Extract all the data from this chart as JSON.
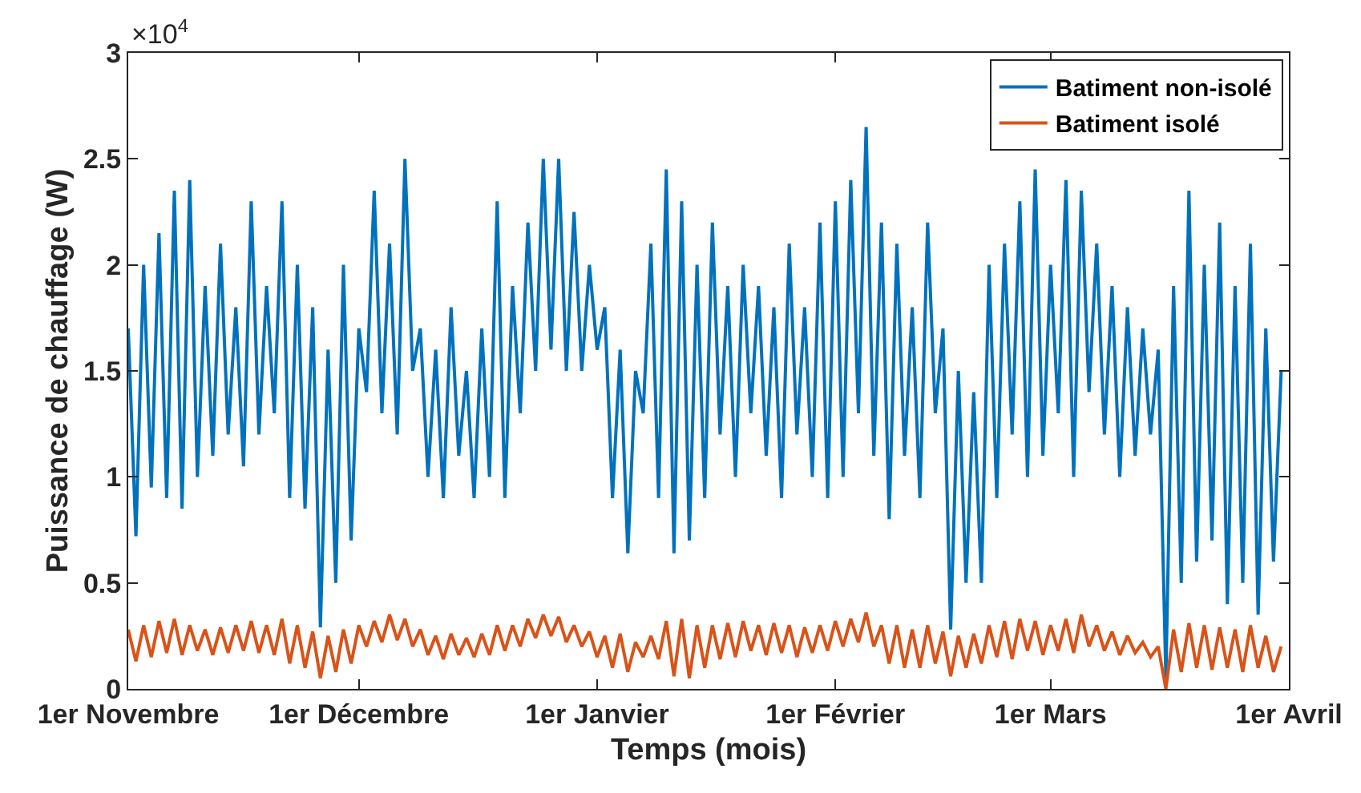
{
  "chart_data": {
    "type": "line",
    "xlabel": "Temps (mois)",
    "ylabel": "Puissance de chauffage (W)",
    "annotations": [
      "×10$^{4}$"
    ],
    "categories": [
      "1er Novembre",
      null,
      null,
      null,
      null,
      null,
      null,
      null,
      null,
      null,
      null,
      null,
      null,
      null,
      null,
      null,
      null,
      null,
      null,
      null,
      null,
      null,
      null,
      null,
      null,
      null,
      null,
      null,
      null,
      null,
      "1er Décembre",
      null,
      null,
      null,
      null,
      null,
      null,
      null,
      null,
      null,
      null,
      null,
      null,
      null,
      null,
      null,
      null,
      null,
      null,
      null,
      null,
      null,
      null,
      null,
      null,
      null,
      null,
      null,
      null,
      null,
      null,
      "1er Janvier",
      null,
      null,
      null,
      null,
      null,
      null,
      null,
      null,
      null,
      null,
      null,
      null,
      null,
      null,
      null,
      null,
      null,
      null,
      null,
      null,
      null,
      null,
      null,
      null,
      null,
      null,
      null,
      null,
      null,
      null,
      "1er Février",
      null,
      null,
      null,
      null,
      null,
      null,
      null,
      null,
      null,
      null,
      null,
      null,
      null,
      null,
      null,
      null,
      null,
      null,
      null,
      null,
      null,
      null,
      null,
      null,
      null,
      null,
      null,
      "1er Mars",
      null,
      null,
      null,
      null,
      null,
      null,
      null,
      null,
      null,
      null,
      null,
      null,
      null,
      null,
      null,
      null,
      null,
      null,
      null,
      null,
      null,
      null,
      null,
      null,
      null,
      null,
      null,
      null,
      null,
      null,
      "1er Avril"
    ],
    "series": [
      {
        "name": "Batiment non-isolé",
        "color": "#0072bd",
        "values": [
          1.7,
          0.72,
          2.0,
          0.95,
          2.15,
          0.9,
          2.35,
          0.85,
          2.4,
          1.0,
          1.9,
          1.1,
          2.1,
          1.2,
          1.8,
          1.05,
          2.3,
          1.2,
          1.9,
          1.3,
          2.3,
          0.9,
          2.0,
          0.85,
          1.8,
          0.29,
          1.6,
          0.5,
          2.0,
          0.7,
          1.7,
          1.4,
          2.35,
          1.3,
          2.1,
          1.2,
          2.5,
          1.5,
          1.7,
          1.0,
          1.6,
          0.9,
          1.8,
          1.1,
          1.5,
          0.9,
          1.7,
          1.0,
          2.3,
          0.9,
          1.9,
          1.3,
          2.2,
          1.5,
          2.5,
          1.6,
          2.5,
          1.5,
          2.25,
          1.5,
          2.0,
          1.6,
          1.8,
          0.9,
          1.6,
          0.64,
          1.5,
          1.3,
          2.1,
          0.9,
          2.45,
          0.64,
          2.3,
          0.7,
          2.0,
          0.9,
          2.2,
          1.2,
          1.9,
          1.0,
          2.0,
          1.3,
          1.9,
          1.1,
          1.8,
          0.9,
          2.1,
          1.2,
          1.8,
          1.0,
          2.2,
          0.9,
          2.3,
          1.0,
          2.4,
          1.3,
          2.65,
          1.1,
          2.2,
          0.8,
          2.1,
          1.1,
          1.8,
          0.9,
          2.2,
          1.3,
          1.7,
          0.28,
          1.5,
          0.5,
          1.4,
          0.5,
          2.0,
          0.9,
          2.1,
          1.2,
          2.3,
          1.0,
          2.45,
          1.1,
          2.0,
          1.3,
          2.4,
          1.0,
          2.35,
          1.4,
          2.1,
          1.2,
          1.9,
          1.0,
          1.8,
          1.1,
          1.7,
          1.2,
          1.6,
          0.05,
          1.9,
          0.5,
          2.35,
          0.6,
          2.0,
          0.7,
          2.2,
          0.4,
          1.9,
          0.5,
          2.1,
          0.35,
          1.7,
          0.6,
          1.5,
          null
        ]
      },
      {
        "name": "Batiment isolé",
        "color": "#d95319",
        "values": [
          0.28,
          0.13,
          0.3,
          0.15,
          0.32,
          0.17,
          0.33,
          0.16,
          0.3,
          0.18,
          0.28,
          0.16,
          0.29,
          0.17,
          0.3,
          0.18,
          0.32,
          0.17,
          0.3,
          0.16,
          0.33,
          0.12,
          0.3,
          0.1,
          0.27,
          0.05,
          0.25,
          0.08,
          0.28,
          0.12,
          0.3,
          0.2,
          0.32,
          0.22,
          0.35,
          0.23,
          0.33,
          0.2,
          0.28,
          0.16,
          0.25,
          0.14,
          0.26,
          0.16,
          0.24,
          0.15,
          0.26,
          0.16,
          0.3,
          0.18,
          0.3,
          0.2,
          0.33,
          0.24,
          0.35,
          0.25,
          0.34,
          0.22,
          0.3,
          0.2,
          0.27,
          0.15,
          0.25,
          0.1,
          0.26,
          0.08,
          0.22,
          0.15,
          0.25,
          0.14,
          0.32,
          0.06,
          0.33,
          0.05,
          0.3,
          0.1,
          0.3,
          0.14,
          0.31,
          0.15,
          0.32,
          0.18,
          0.3,
          0.16,
          0.31,
          0.17,
          0.3,
          0.15,
          0.29,
          0.17,
          0.3,
          0.18,
          0.32,
          0.2,
          0.33,
          0.22,
          0.36,
          0.2,
          0.3,
          0.12,
          0.3,
          0.1,
          0.28,
          0.1,
          0.3,
          0.12,
          0.27,
          0.06,
          0.25,
          0.1,
          0.26,
          0.12,
          0.3,
          0.15,
          0.32,
          0.14,
          0.33,
          0.18,
          0.32,
          0.16,
          0.3,
          0.18,
          0.33,
          0.17,
          0.35,
          0.2,
          0.3,
          0.18,
          0.27,
          0.16,
          0.25,
          0.17,
          0.22,
          0.15,
          0.2,
          0.0,
          0.28,
          0.08,
          0.31,
          0.1,
          0.3,
          0.09,
          0.29,
          0.1,
          0.28,
          0.08,
          0.3,
          0.1,
          0.25,
          0.08,
          0.2,
          null
        ]
      }
    ],
    "ylim": [
      0,
      3
    ],
    "yticks": [
      0,
      0.5,
      1,
      1.5,
      2,
      2.5,
      3
    ],
    "legend": "top right",
    "grid": false,
    "marker": "none",
    "line_style": "solid"
  }
}
